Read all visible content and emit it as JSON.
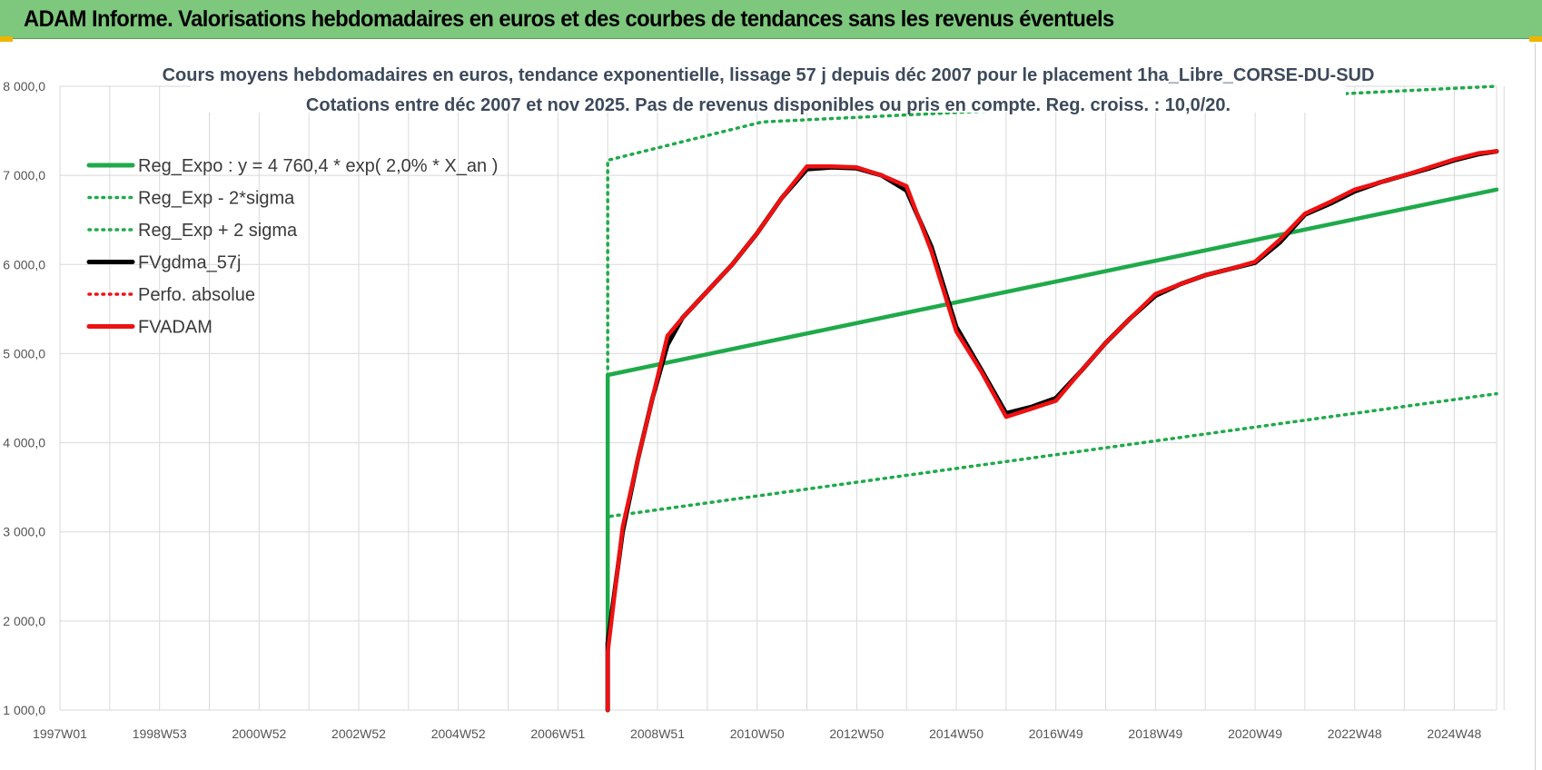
{
  "header": {
    "title": "ADAM Informe. Valorisations hebdomadaires en euros et des courbes de tendances sans les revenus éventuels"
  },
  "colors": {
    "header_bg": "#7dc87d",
    "reg_green": "#1faa4a",
    "fvadam_red": "#ee1111",
    "fvgdma_black": "#000000",
    "grid": "#d9d9d9"
  },
  "chart_data": {
    "type": "line",
    "subtitle_line1": "Cours moyens hebdomadaires en euros, tendance exponentielle, lissage 57 j depuis déc 2007 pour le placement 1ha_Libre_CORSE-DU-SUD",
    "subtitle_line2": "Cotations entre déc 2007 et nov 2025.  Pas de revenus disponibles ou pris en compte. Reg. croiss. : 10,0/20.",
    "x_tick_labels": [
      "1997W01",
      "1998W53",
      "2000W52",
      "2002W52",
      "2004W52",
      "2006W51",
      "2008W51",
      "2010W50",
      "2012W50",
      "2014W50",
      "2016W49",
      "2018W49",
      "2020W49",
      "2022W48",
      "2024W48"
    ],
    "x_range": [
      1997.0,
      2025.85
    ],
    "y_tick_labels": [
      "1 000,0",
      "2 000,0",
      "3 000,0",
      "4 000,0",
      "5 000,0",
      "6 000,0",
      "7 000,0",
      "8 000,0"
    ],
    "ylim": [
      1000,
      8000
    ],
    "grid": true,
    "legend_position": "top-left",
    "legend": [
      {
        "label": "Reg_Expo : y = 4 760,4 * exp( 2,0% *  X_an )",
        "style": "solid",
        "color": "#1faa4a"
      },
      {
        "label": "Reg_Exp - 2*sigma",
        "style": "dotted",
        "color": "#1faa4a"
      },
      {
        "label": "Reg_Exp + 2 sigma",
        "style": "dotted",
        "color": "#1faa4a"
      },
      {
        "label": "FVgdma_57j",
        "style": "solid",
        "color": "#000000"
      },
      {
        "label": "Perfo. absolue",
        "style": "dotted",
        "color": "#ee1111"
      },
      {
        "label": "FVADAM",
        "style": "solid",
        "color": "#ee1111"
      }
    ],
    "series": [
      {
        "name": "Reg_Expo : y = 4 760,4 * exp( 2,0% *  X_an )",
        "x": [
          2008.0,
          2008.0,
          2025.85
        ],
        "y": [
          1000,
          4760,
          6840
        ]
      },
      {
        "name": "Reg_Exp - 2*sigma",
        "x": [
          2008.0,
          2008.0,
          2025.85
        ],
        "y": [
          1000,
          3170,
          4550
        ]
      },
      {
        "name": "Reg_Exp + 2 sigma",
        "x": [
          2008.0,
          2008.0,
          2011.1,
          2025.85
        ],
        "y": [
          1000,
          7170,
          7600,
          8000
        ]
      },
      {
        "name": "FVgdma_57j",
        "x": [
          2008.0,
          2008.0,
          2008.3,
          2008.6,
          2008.9,
          2009.2,
          2009.5,
          2010.0,
          2010.5,
          2011.0,
          2011.5,
          2012.0,
          2012.5,
          2013.0,
          2013.5,
          2014.0,
          2014.5,
          2015.0,
          2015.5,
          2016.0,
          2016.5,
          2017.0,
          2017.5,
          2018.0,
          2018.5,
          2019.0,
          2019.5,
          2020.0,
          2020.5,
          2021.0,
          2021.5,
          2022.0,
          2022.5,
          2023.0,
          2023.5,
          2024.0,
          2024.5,
          2025.0,
          2025.5,
          2025.85
        ],
        "y": [
          1000,
          1750,
          3000,
          3800,
          4500,
          5100,
          5400,
          5700,
          6000,
          6350,
          6750,
          7070,
          7090,
          7080,
          7000,
          6830,
          6200,
          5300,
          4820,
          4330,
          4400,
          4500,
          4800,
          5120,
          5400,
          5650,
          5780,
          5880,
          5950,
          6020,
          6250,
          6560,
          6680,
          6820,
          6920,
          7000,
          7080,
          7170,
          7240,
          7270
        ]
      },
      {
        "name": "FVADAM",
        "x": [
          2008.0,
          2008.0,
          2008.3,
          2008.6,
          2008.9,
          2009.2,
          2009.5,
          2010.0,
          2010.5,
          2011.0,
          2011.5,
          2012.0,
          2012.5,
          2013.0,
          2013.5,
          2014.0,
          2014.5,
          2015.0,
          2015.5,
          2016.0,
          2016.5,
          2017.0,
          2017.5,
          2018.0,
          2018.5,
          2019.0,
          2019.5,
          2020.0,
          2020.5,
          2021.0,
          2021.5,
          2022.0,
          2022.5,
          2023.0,
          2023.5,
          2024.0,
          2024.5,
          2025.0,
          2025.5,
          2025.85
        ],
        "y": [
          1000,
          1650,
          3050,
          3800,
          4500,
          5200,
          5400,
          5700,
          6000,
          6350,
          6750,
          7100,
          7100,
          7090,
          7000,
          6880,
          6150,
          5250,
          4800,
          4290,
          4380,
          4470,
          4800,
          5120,
          5400,
          5670,
          5780,
          5880,
          5950,
          6030,
          6280,
          6570,
          6700,
          6840,
          6920,
          7000,
          7090,
          7180,
          7250,
          7270
        ]
      }
    ]
  }
}
